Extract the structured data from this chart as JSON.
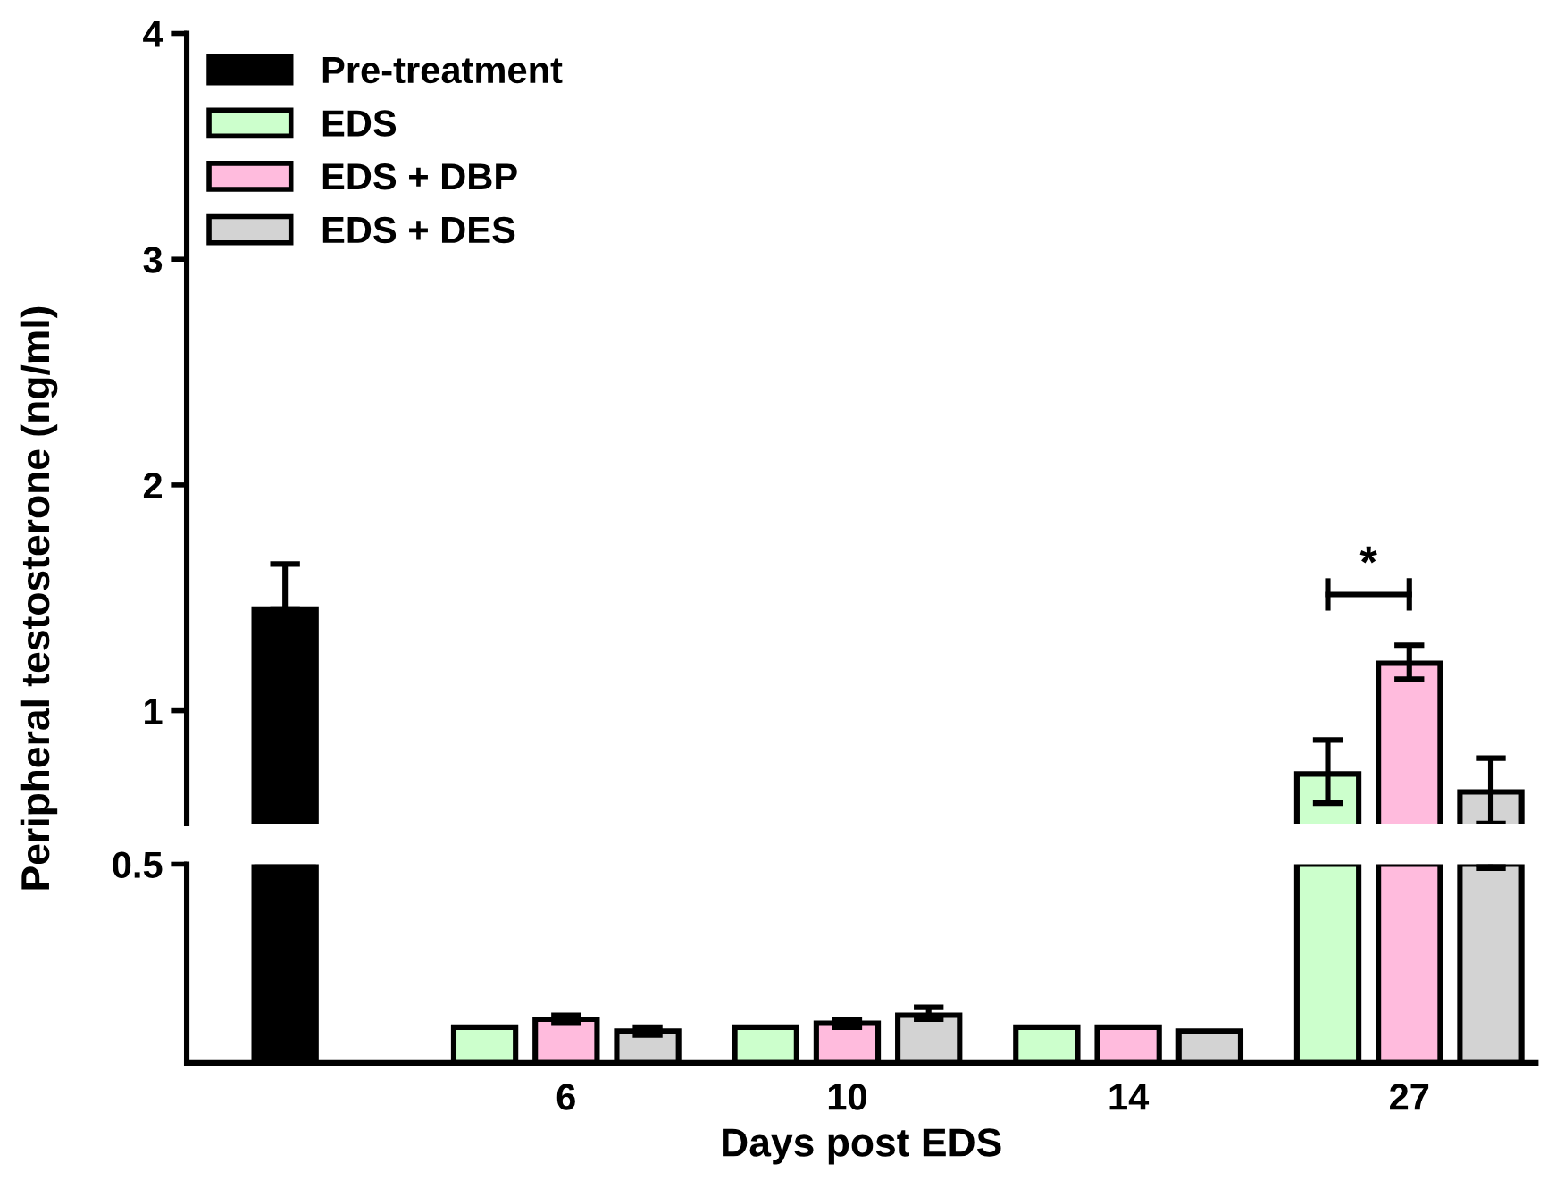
{
  "chart_data": [
    {
      "type": "bar",
      "ylabel": "Peripheral testosterone (ng/ml)",
      "categories": [
        null,
        "6",
        "10",
        "14",
        "27"
      ],
      "ylim": [
        0.5,
        4
      ],
      "yticks": [
        1,
        2,
        3,
        4
      ],
      "tick_labels": "y",
      "legend": "top left",
      "grid": false,
      "annotations": [
        "*"
      ],
      "series": [
        {
          "name": "Pre-treatment",
          "color": "#000000",
          "values": [
            1.45,
            null,
            null,
            null,
            null
          ],
          "errors": [
            [
              1.45,
              1.65
            ],
            null,
            null,
            null,
            null
          ]
        },
        {
          "name": "EDS",
          "color": "#ccffcc",
          "values": [
            null,
            null,
            null,
            null,
            0.72
          ],
          "errors": [
            null,
            null,
            null,
            null,
            [
              0.59,
              0.87
            ]
          ]
        },
        {
          "name": "EDS + DBP",
          "color": "#ffbbdd",
          "values": [
            null,
            null,
            null,
            null,
            1.21
          ],
          "errors": [
            null,
            null,
            null,
            null,
            [
              1.14,
              1.29
            ]
          ]
        },
        {
          "name": "EDS + DES",
          "color": "#d3d3d3",
          "values": [
            null,
            null,
            null,
            null,
            0.64
          ],
          "errors": [
            null,
            null,
            null,
            null,
            [
              0.5,
              0.79
            ]
          ]
        }
      ]
    },
    {
      "type": "bar",
      "xlabel": "Days post EDS",
      "categories": [
        null,
        "6",
        "10",
        "14",
        "27"
      ],
      "ylim": [
        0,
        0.5
      ],
      "yticks": [
        0.5
      ],
      "grid": false,
      "series": [
        {
          "color": "#000000",
          "values": [
            0.5,
            null,
            null,
            null,
            null
          ]
        },
        {
          "color": "#ccffcc",
          "values": [
            null,
            0.09,
            0.09,
            0.09,
            0.5
          ]
        },
        {
          "color": "#ffbbdd",
          "values": [
            null,
            0.11,
            0.1,
            0.09,
            0.5
          ],
          "errors": [
            null,
            [
              0.1,
              0.12
            ],
            [
              0.09,
              0.11
            ],
            null,
            null
          ]
        },
        {
          "color": "#d3d3d3",
          "values": [
            null,
            0.08,
            0.12,
            0.08,
            0.5
          ],
          "errors": [
            null,
            [
              0.07,
              0.09
            ],
            [
              0.11,
              0.14
            ],
            null,
            [
              0.49,
              0.5
            ]
          ]
        }
      ]
    }
  ]
}
